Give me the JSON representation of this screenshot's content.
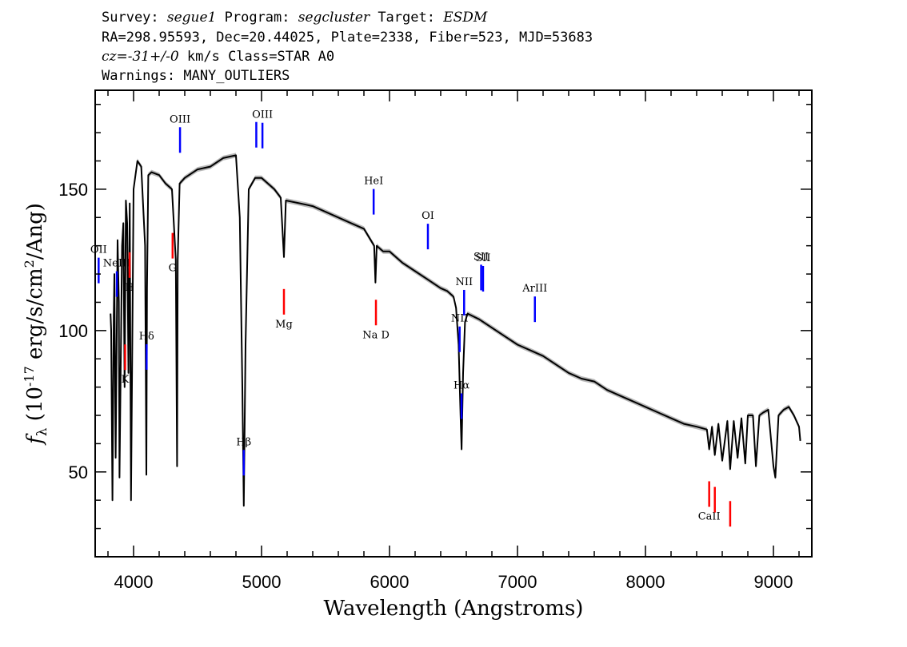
{
  "header": {
    "line1": {
      "survey_label": "Survey: ",
      "survey": "segue1",
      "program_label": " Program: ",
      "program": "segcluster",
      "target_label": " Target: ",
      "target": "ESDM"
    },
    "line2": "RA=298.95593, Dec=20.44025, Plate=2338, Fiber=523, MJD=53683",
    "line3": {
      "cz_label": "cz=",
      "cz": "-31+/-0",
      "rest": " km/s Class=STAR A0"
    },
    "line4": "Warnings: MANY_OUTLIERS"
  },
  "chart_data": {
    "type": "line",
    "xlabel": "Wavelength (Angstroms)",
    "ylabel": "f_λ (10^-17 erg/s/cm^2/Ang)",
    "xlim": [
      3700,
      9300
    ],
    "ylim": [
      20,
      185
    ],
    "x_ticks": [
      4000,
      5000,
      6000,
      7000,
      8000,
      9000
    ],
    "y_ticks": [
      50,
      100,
      150
    ],
    "grid": false,
    "colors": {
      "spectrum": "#000000",
      "error_band": "#b8b8b8",
      "emission": "#0000ff",
      "absorption": "#ff0000"
    },
    "series": [
      {
        "x": [
          3820,
          3825,
          3835,
          3838,
          3845,
          3850,
          3860,
          3875,
          3885,
          3890,
          3910,
          3920,
          3930,
          3940,
          3950,
          3960,
          3970,
          3980,
          4000,
          4030,
          4060,
          4090,
          4100,
          4105,
          4115,
          4140,
          4200,
          4250,
          4300,
          4330,
          4340,
          4345,
          4360,
          4400,
          4500,
          4600,
          4700,
          4800,
          4830,
          4850,
          4861,
          4875,
          4900,
          4950,
          5000,
          5100,
          5150,
          5175,
          5190,
          5300,
          5400,
          5500,
          5600,
          5700,
          5800,
          5880,
          5890,
          5900,
          5950,
          6000,
          6100,
          6200,
          6300,
          6400,
          6450,
          6500,
          6520,
          6540,
          6555,
          6563,
          6575,
          6590,
          6610,
          6700,
          6800,
          6900,
          7000,
          7100,
          7200,
          7300,
          7400,
          7500,
          7600,
          7700,
          7800,
          7900,
          8000,
          8100,
          8200,
          8300,
          8400,
          8480,
          8498,
          8520,
          8542,
          8570,
          8600,
          8640,
          8662,
          8690,
          8720,
          8750,
          8780,
          8800,
          8840,
          8863,
          8890,
          8920,
          8960,
          9000,
          9015,
          9040,
          9080,
          9120,
          9160,
          9200,
          9210
        ],
        "y": [
          106,
          100,
          40,
          60,
          105,
          120,
          55,
          132,
          110,
          48,
          130,
          138,
          80,
          146,
          138,
          85,
          145,
          40,
          150,
          160,
          158,
          130,
          49,
          115,
          155,
          156,
          155,
          152,
          150,
          125,
          52,
          125,
          152,
          154,
          157,
          158,
          161,
          162,
          140,
          80,
          38,
          95,
          150,
          154,
          154,
          150,
          147,
          126,
          146,
          145,
          144,
          142,
          140,
          138,
          136,
          130,
          117,
          130,
          128,
          128,
          124,
          121,
          118,
          115,
          114,
          112,
          108,
          95,
          70,
          58,
          85,
          103,
          106,
          104,
          101,
          98,
          95,
          93,
          91,
          88,
          85,
          83,
          82,
          79,
          77,
          75,
          73,
          71,
          69,
          67,
          66,
          65,
          58,
          66,
          56,
          67,
          54,
          68,
          51,
          68,
          55,
          69,
          53,
          70,
          70,
          52,
          70,
          71,
          72,
          52,
          48,
          70,
          72,
          73,
          70,
          66,
          61
        ]
      }
    ],
    "line_labels": [
      {
        "name": "NeIII",
        "kind": "emission",
        "x": 3869
      },
      {
        "name": "Hδ",
        "kind": "emission",
        "x": 4102
      },
      {
        "name": "OIII",
        "kind": "emission",
        "x": 4363
      },
      {
        "name": "Hβ",
        "kind": "emission",
        "x": 4861
      },
      {
        "name": "OIII",
        "kind": "emission",
        "x": 4959
      },
      {
        "name": "OIII",
        "kind": "emission",
        "x": 5007
      },
      {
        "name": "HeI",
        "kind": "emission",
        "x": 5876
      },
      {
        "name": "OI",
        "kind": "emission",
        "x": 6300
      },
      {
        "name": "NII",
        "kind": "emission",
        "x": 6548
      },
      {
        "name": "Hα",
        "kind": "emission",
        "x": 6563
      },
      {
        "name": "NII",
        "kind": "emission",
        "x": 6583
      },
      {
        "name": "SII",
        "kind": "emission",
        "x": 6716
      },
      {
        "name": "SII",
        "kind": "emission",
        "x": 6731
      },
      {
        "name": "ArIII",
        "kind": "emission",
        "x": 7136
      },
      {
        "name": "OII",
        "kind": "emission",
        "x": 3727
      },
      {
        "name": "K",
        "kind": "absorption",
        "x": 3934
      },
      {
        "name": "H",
        "kind": "absorption",
        "x": 3969
      },
      {
        "name": "G",
        "kind": "absorption",
        "x": 4305
      },
      {
        "name": "Mg",
        "kind": "absorption",
        "x": 5175
      },
      {
        "name": "Na D",
        "kind": "absorption",
        "x": 5894
      },
      {
        "name": "CaII",
        "kind": "absorption",
        "x": 8498
      },
      {
        "name": "CaII",
        "kind": "absorption",
        "x": 8542
      },
      {
        "name": "CaII",
        "kind": "absorption",
        "x": 8662
      }
    ]
  }
}
